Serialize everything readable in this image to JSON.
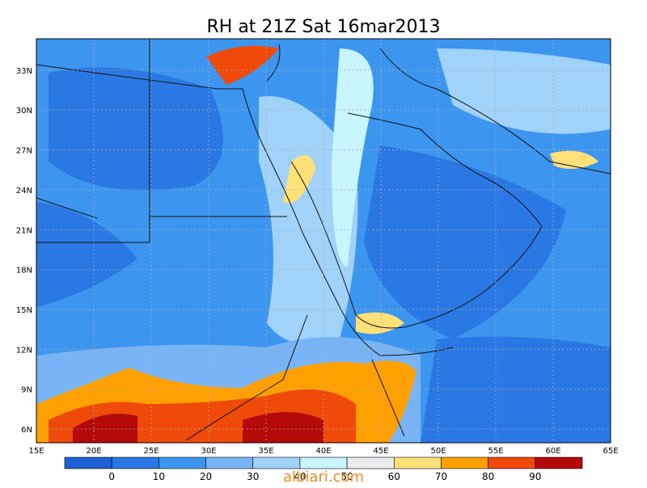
{
  "title": "RH at 21Z Sat 16mar2013",
  "lon_labels": [
    "15E",
    "20E",
    "25E",
    "30E",
    "35E",
    "40E",
    "45E",
    "50E",
    "55E",
    "60E",
    "65E"
  ],
  "lat_labels": [
    "6N",
    "9N",
    "12N",
    "15N",
    "18N",
    "21N",
    "24N",
    "27N",
    "30N",
    "33N"
  ],
  "colorbar": {
    "labels": [
      0,
      10,
      20,
      30,
      40,
      50,
      60,
      70,
      80,
      90
    ],
    "colors": [
      "#1e5fd6",
      "#2a78e4",
      "#3c96f0",
      "#78b4f5",
      "#a0d2fa",
      "#c8f5ff",
      "#e8ecec",
      "#ffe178",
      "#ffa000",
      "#f04a0a",
      "#b40a0a"
    ]
  },
  "watermark": "albiari.com"
}
